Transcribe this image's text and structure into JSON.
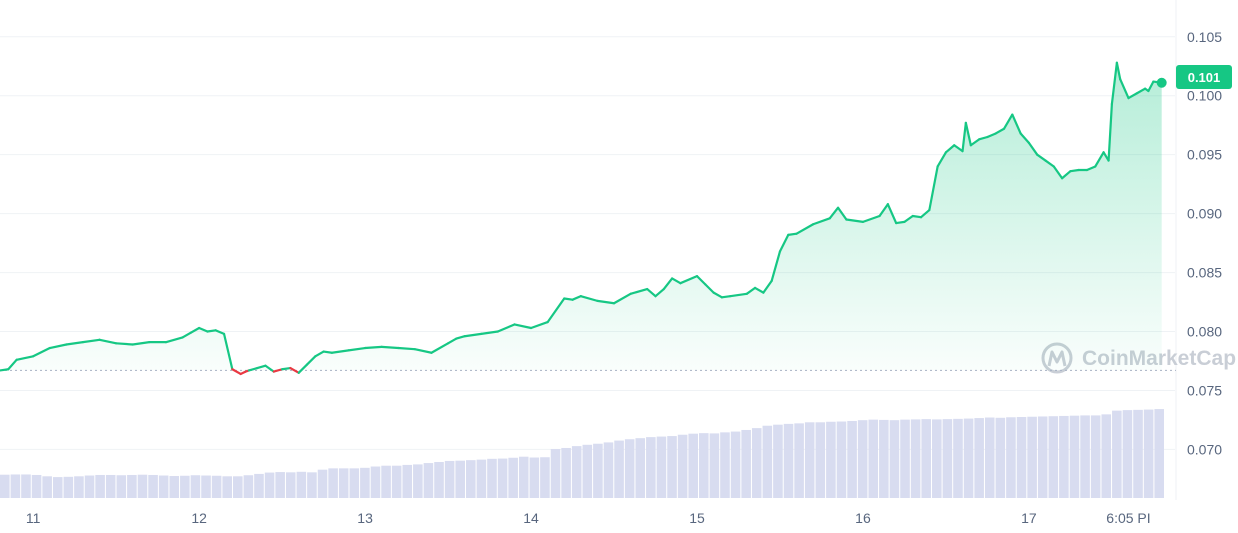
{
  "watermark": "CoinMarketCap",
  "colors": {
    "up": "#16c784",
    "down": "#ea3943",
    "grid": "#eff2f5",
    "volume": "#d8dcf0",
    "text": "#58667e",
    "baseline": "#a6b0c3"
  },
  "chart_data": {
    "type": "line",
    "title": "",
    "xlabel": "",
    "ylabel": "",
    "ylim": [
      0.068,
      0.106
    ],
    "y_ticks": [
      "0.070",
      "0.075",
      "0.080",
      "0.085",
      "0.090",
      "0.095",
      "0.100",
      "0.105"
    ],
    "x_ticks": [
      "11",
      "12",
      "13",
      "14",
      "15",
      "16",
      "17",
      "6:05 PI"
    ],
    "x_tick_positions": [
      11,
      12,
      13,
      14,
      15,
      16,
      17,
      17.6
    ],
    "xlim": [
      10.8,
      17.82
    ],
    "baseline": 0.0767,
    "current_price_label": "0.101",
    "current_price": 0.1011,
    "grid": true,
    "series": [
      {
        "x": [
          10.8,
          10.85,
          10.9,
          11.0,
          11.1,
          11.2,
          11.3,
          11.4,
          11.5,
          11.6,
          11.7,
          11.8,
          11.9,
          11.95,
          12.0,
          12.05,
          12.1,
          12.15,
          12.2,
          12.25,
          12.28,
          12.3,
          12.35,
          12.4,
          12.45,
          12.5,
          12.55,
          12.6,
          12.65,
          12.7,
          12.75,
          12.8,
          12.9,
          13.0,
          13.1,
          13.2,
          13.3,
          13.4,
          13.5,
          13.55,
          13.6,
          13.7,
          13.8,
          13.9,
          14.0,
          14.1,
          14.2,
          14.25,
          14.3,
          14.4,
          14.5,
          14.6,
          14.7,
          14.75,
          14.8,
          14.85,
          14.9,
          15.0,
          15.05,
          15.1,
          15.15,
          15.2,
          15.3,
          15.35,
          15.4,
          15.45,
          15.5,
          15.55,
          15.6,
          15.7,
          15.8,
          15.85,
          15.9,
          16.0,
          16.1,
          16.15,
          16.2,
          16.25,
          16.3,
          16.35,
          16.4,
          16.45,
          16.5,
          16.55,
          16.6,
          16.62,
          16.65,
          16.7,
          16.75,
          16.8,
          16.85,
          16.9,
          16.95,
          17.0,
          17.05,
          17.1,
          17.15,
          17.2,
          17.25,
          17.3,
          17.35,
          17.4,
          17.45,
          17.48,
          17.5,
          17.53,
          17.55,
          17.6,
          17.65,
          17.7,
          17.72,
          17.75,
          17.8
        ],
        "values": [
          0.0767,
          0.0768,
          0.0776,
          0.0779,
          0.0786,
          0.0789,
          0.0791,
          0.0793,
          0.079,
          0.0789,
          0.0791,
          0.0791,
          0.0795,
          0.0799,
          0.0803,
          0.08,
          0.0801,
          0.0798,
          0.0768,
          0.0764,
          0.0766,
          0.0767,
          0.0769,
          0.0771,
          0.0766,
          0.0768,
          0.0769,
          0.0765,
          0.0772,
          0.0779,
          0.0783,
          0.0782,
          0.0784,
          0.0786,
          0.0787,
          0.0786,
          0.0785,
          0.0782,
          0.079,
          0.0794,
          0.0796,
          0.0798,
          0.08,
          0.0806,
          0.0803,
          0.0808,
          0.0828,
          0.0827,
          0.083,
          0.0826,
          0.0824,
          0.0832,
          0.0836,
          0.083,
          0.0836,
          0.0845,
          0.0841,
          0.0847,
          0.084,
          0.0833,
          0.0829,
          0.083,
          0.0832,
          0.0837,
          0.0833,
          0.0843,
          0.0868,
          0.0882,
          0.0883,
          0.0891,
          0.0896,
          0.0905,
          0.0895,
          0.0893,
          0.0898,
          0.0908,
          0.0892,
          0.0893,
          0.0898,
          0.0897,
          0.0903,
          0.094,
          0.0952,
          0.0958,
          0.0953,
          0.0977,
          0.0958,
          0.0963,
          0.0965,
          0.0968,
          0.0972,
          0.0984,
          0.0968,
          0.096,
          0.095,
          0.0945,
          0.094,
          0.093,
          0.0936,
          0.0937,
          0.0937,
          0.094,
          0.0952,
          0.0945,
          0.0993,
          0.1028,
          0.1014,
          0.0998,
          0.1002,
          0.1006,
          0.1004,
          0.1012,
          0.1011
        ]
      }
    ],
    "volume": [
      0.088,
      0.089,
      0.089,
      0.087,
      0.082,
      0.079,
      0.08,
      0.082,
      0.085,
      0.087,
      0.087,
      0.086,
      0.087,
      0.088,
      0.087,
      0.085,
      0.083,
      0.084,
      0.086,
      0.085,
      0.084,
      0.082,
      0.082,
      0.086,
      0.091,
      0.096,
      0.098,
      0.097,
      0.099,
      0.097,
      0.107,
      0.112,
      0.112,
      0.112,
      0.114,
      0.119,
      0.122,
      0.122,
      0.125,
      0.127,
      0.132,
      0.136,
      0.14,
      0.141,
      0.143,
      0.145,
      0.148,
      0.149,
      0.152,
      0.156,
      0.153,
      0.154,
      0.185,
      0.189,
      0.196,
      0.201,
      0.205,
      0.21,
      0.217,
      0.222,
      0.226,
      0.23,
      0.232,
      0.234,
      0.239,
      0.243,
      0.245,
      0.244,
      0.248,
      0.251,
      0.257,
      0.264,
      0.273,
      0.277,
      0.28,
      0.282,
      0.286,
      0.286,
      0.288,
      0.289,
      0.291,
      0.294,
      0.296,
      0.295,
      0.294,
      0.296,
      0.297,
      0.298,
      0.297,
      0.298,
      0.299,
      0.3,
      0.302,
      0.304,
      0.303,
      0.305,
      0.306,
      0.307,
      0.308,
      0.309,
      0.31,
      0.311,
      0.312,
      0.312,
      0.316,
      0.33,
      0.332,
      0.333,
      0.334,
      0.336
    ]
  }
}
